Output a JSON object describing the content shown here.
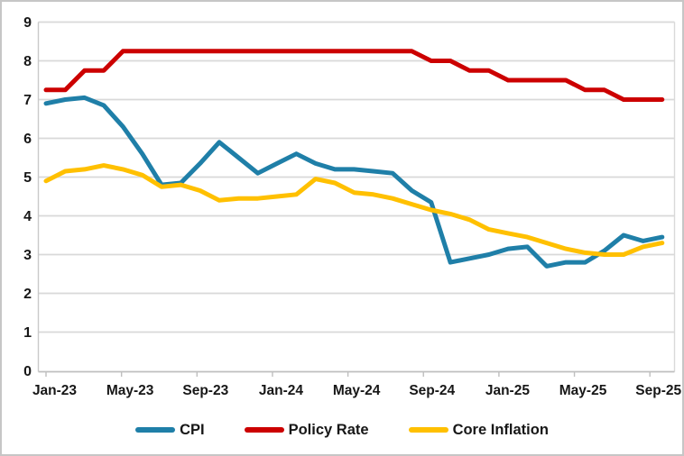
{
  "chart_data": {
    "type": "line",
    "title": "",
    "xlabel": "",
    "ylabel": "",
    "categories": [
      "Jan-23",
      "Feb-23",
      "Mar-23",
      "Apr-23",
      "May-23",
      "Jun-23",
      "Jul-23",
      "Aug-23",
      "Sep-23",
      "Oct-23",
      "Nov-23",
      "Dec-23",
      "Jan-24",
      "Feb-24",
      "Mar-24",
      "Apr-24",
      "May-24",
      "Jun-24",
      "Jul-24",
      "Aug-24",
      "Sep-24",
      "Oct-24",
      "Nov-24",
      "Dec-24",
      "Jan-25",
      "Feb-25",
      "Mar-25",
      "Apr-25",
      "May-25",
      "Jun-25",
      "Jul-25",
      "Aug-25",
      "Sep-25"
    ],
    "series": [
      {
        "name": "CPI",
        "color": "#1F7FA8",
        "values": [
          6.9,
          7.0,
          7.05,
          6.85,
          6.3,
          5.6,
          4.8,
          4.85,
          5.35,
          5.9,
          5.5,
          5.1,
          5.35,
          5.6,
          5.35,
          5.2,
          5.2,
          5.15,
          5.1,
          4.65,
          4.35,
          2.8,
          2.9,
          3.0,
          3.15,
          3.2,
          2.7,
          2.8,
          2.8,
          3.1,
          3.5,
          3.35,
          3.45
        ]
      },
      {
        "name": "Policy Rate",
        "color": "#CC0000",
        "values": [
          7.25,
          7.25,
          7.75,
          7.75,
          8.25,
          8.25,
          8.25,
          8.25,
          8.25,
          8.25,
          8.25,
          8.25,
          8.25,
          8.25,
          8.25,
          8.25,
          8.25,
          8.25,
          8.25,
          8.25,
          8.0,
          8.0,
          7.75,
          7.75,
          7.5,
          7.5,
          7.5,
          7.5,
          7.25,
          7.25,
          7.0,
          7.0,
          7.0
        ]
      },
      {
        "name": "Core Inflation",
        "color": "#FFC000",
        "values": [
          4.9,
          5.15,
          5.2,
          5.3,
          5.2,
          5.05,
          4.75,
          4.8,
          4.65,
          4.4,
          4.45,
          4.45,
          4.5,
          4.55,
          4.95,
          4.85,
          4.6,
          4.55,
          4.45,
          4.3,
          4.15,
          4.05,
          3.9,
          3.65,
          3.55,
          3.45,
          3.3,
          3.15,
          3.05,
          3.0,
          3.0,
          3.2,
          3.3
        ]
      }
    ],
    "x_tick_labels": [
      "Jan-23",
      "May-23",
      "Sep-23",
      "Jan-24",
      "May-24",
      "Sep-24",
      "Jan-25",
      "May-25",
      "Sep-25"
    ],
    "x_tick_every": 4,
    "y_ticks": [
      0,
      1,
      2,
      3,
      4,
      5,
      6,
      7,
      8,
      9
    ],
    "ylim": [
      0,
      9
    ],
    "grid": true,
    "legend_position": "bottom"
  },
  "style_colors": {
    "gridline": "#D9D9D9",
    "axis_line": "#BFBFBF",
    "spine": "#C9C9C9",
    "text": "#171717",
    "background": "#FFFFFF",
    "canvas_border": "#C6C6C6"
  }
}
